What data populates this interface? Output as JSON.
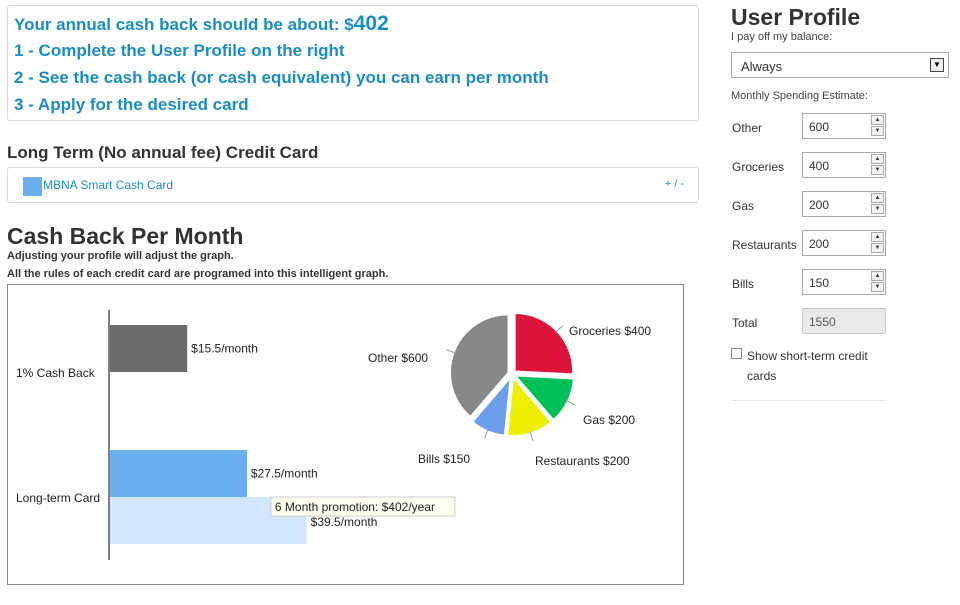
{
  "steps": {
    "headline_prefix": "Your annual cash back should be about: $",
    "headline_amount": "402",
    "step1": "1 - Complete the User Profile on the right",
    "step2": "2 - See the cash back (or cash equivalent) you can earn per month",
    "step3": "3 - Apply for the desired card"
  },
  "long_term": {
    "heading": "Long Term (No annual fee) Credit Card",
    "card_name": "MBNA Smart Cash Card",
    "toggle": "+ / -",
    "swatch_color": "#6ab0ee"
  },
  "cashback": {
    "title": "Cash Back Per Month",
    "subtitle1": "Adjusting your profile will adjust the graph.",
    "subtitle2": "All the rules of each credit card are programed into this intelligent graph."
  },
  "chart_data": [
    {
      "type": "bar",
      "orientation": "horizontal",
      "categories": [
        "1% Cash Back",
        "Long-term Card"
      ],
      "series": [
        {
          "values": [
            15.5,
            27.5
          ],
          "labels": [
            "$15.5/month",
            "$27.5/month"
          ],
          "colors": [
            "#6b6b6b",
            "#6ab0ee"
          ]
        },
        {
          "values": [
            null,
            39.5
          ],
          "labels": [
            null,
            "$39.5/month"
          ],
          "colors": [
            null,
            "#d3e7fa"
          ]
        }
      ],
      "tooltip": "6 Month promotion: $402/year",
      "xlim": [
        0,
        95
      ]
    },
    {
      "type": "pie",
      "labels": [
        "Groceries $400",
        "Gas $200",
        "Restaurants $200",
        "Bills $150",
        "Other $600"
      ],
      "values": [
        400,
        200,
        200,
        150,
        600
      ],
      "colors": [
        "#dc143c",
        "#00c05a",
        "#eeee00",
        "#6d9eeb",
        "#888888"
      ]
    }
  ],
  "profile": {
    "title": "User Profile",
    "balance_label": "I pay off my balance:",
    "balance_value": "Always",
    "spending_label": "Monthly Spending Estimate:",
    "rows": [
      {
        "label": "Other",
        "value": "600"
      },
      {
        "label": "Groceries",
        "value": "400"
      },
      {
        "label": "Gas",
        "value": "200"
      },
      {
        "label": "Restaurants",
        "value": "200"
      },
      {
        "label": "Bills",
        "value": "150"
      }
    ],
    "total_label": "Total",
    "total_value": "1550",
    "short_term_label": "Show short-term credit cards"
  }
}
